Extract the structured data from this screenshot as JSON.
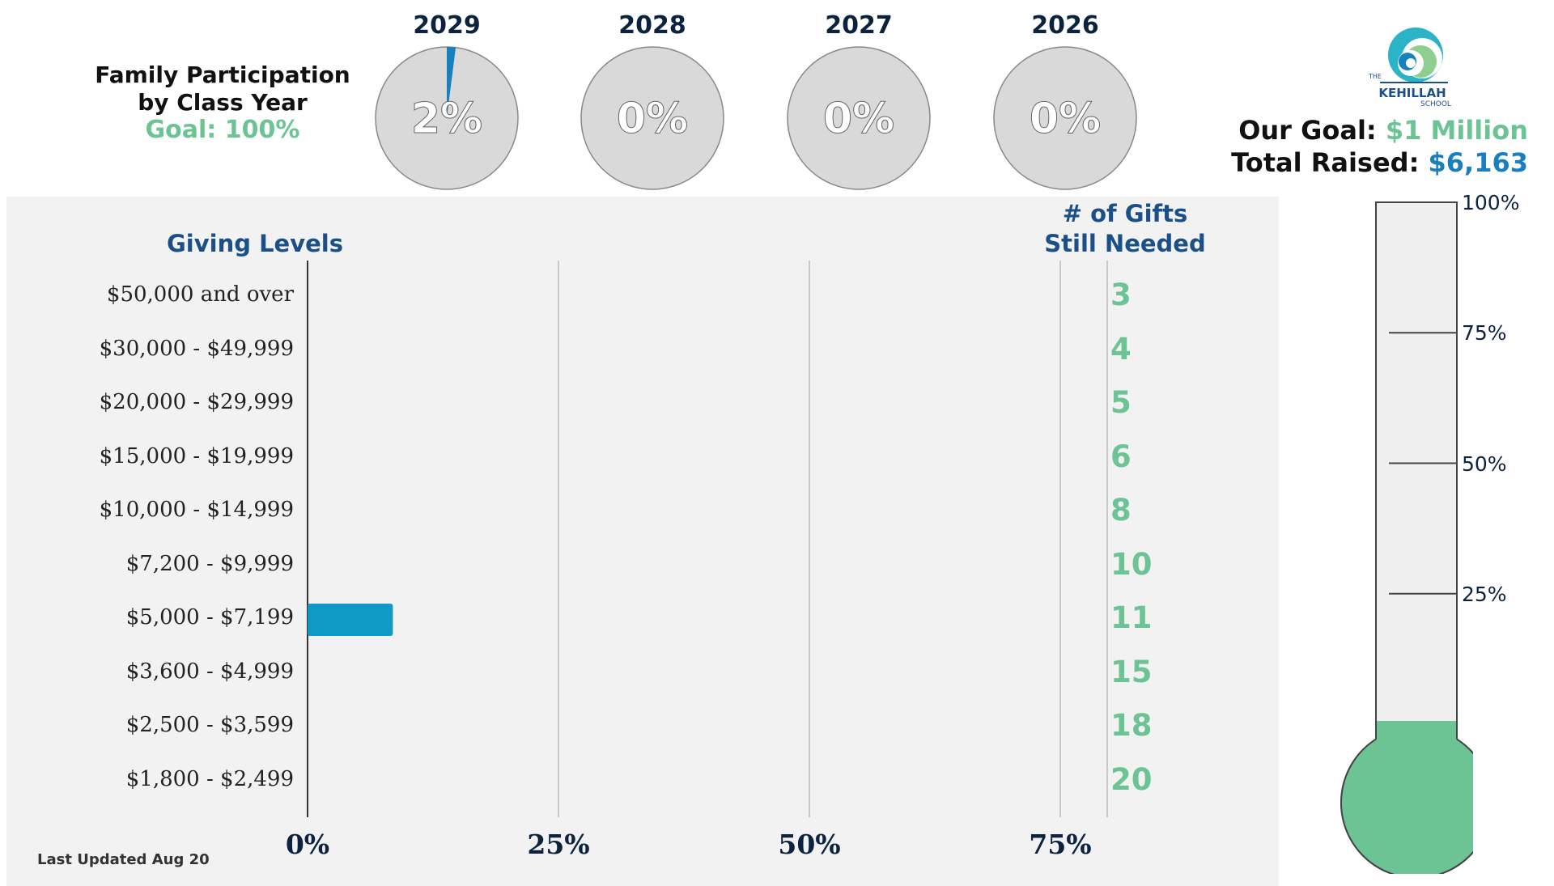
{
  "header": {
    "title_line1": "Family Participation",
    "title_line2": "by Class Year",
    "goal": "Goal: 100%"
  },
  "class_years": [
    {
      "year": "2029",
      "percent_label": "2%",
      "value": 2
    },
    {
      "year": "2028",
      "percent_label": "0%",
      "value": 0
    },
    {
      "year": "2027",
      "percent_label": "0%",
      "value": 0
    },
    {
      "year": "2026",
      "percent_label": "0%",
      "value": 0
    }
  ],
  "logo": {
    "text_the": "THE",
    "text_name": "KEHILLAH",
    "text_school": "SCHOOL"
  },
  "fundraising": {
    "goal_label": "Our Goal:",
    "goal_value": "$1 Million",
    "raised_label": "Total Raised:",
    "raised_value": "$6,163",
    "raised_fraction": 0.006163
  },
  "thermometer": {
    "ticks": [
      "100%",
      "75%",
      "50%",
      "25%"
    ]
  },
  "levels_header": "Giving Levels",
  "gifts_header_line1": "# of Gifts",
  "gifts_header_line2": "Still Needed",
  "footer": {
    "updated": "Last Updated Aug 20"
  },
  "colors": {
    "bar": "#0e9ac5",
    "pie_fill": "#1a7fbf",
    "green": "#6cc494",
    "navy": "#0c2340",
    "blue_heading": "#1a4f88",
    "raised_blue": "#1a7fbf"
  },
  "chart_data": {
    "type": "bar",
    "orientation": "horizontal",
    "categories": [
      "$50,000 and over",
      "$30,000 - $49,999",
      "$20,000 - $29,999",
      "$15,000 - $19,999",
      "$10,000 - $14,999",
      "$7,200 - $9,999",
      "$5,000 - $7,199",
      "$3,600 - $4,999",
      "$2,500 - $3,599",
      "$1,800 - $2,499"
    ],
    "values": [
      0,
      0,
      0,
      0,
      0,
      0,
      8.5,
      0,
      0,
      0
    ],
    "gifts_still_needed": [
      "3",
      "4",
      "5",
      "6",
      "8",
      "10",
      "11",
      "15",
      "18",
      "20"
    ],
    "xlim": [
      0,
      100
    ],
    "x_ticks": [
      "0%",
      "25%",
      "50%",
      "75%"
    ],
    "grid": true
  }
}
